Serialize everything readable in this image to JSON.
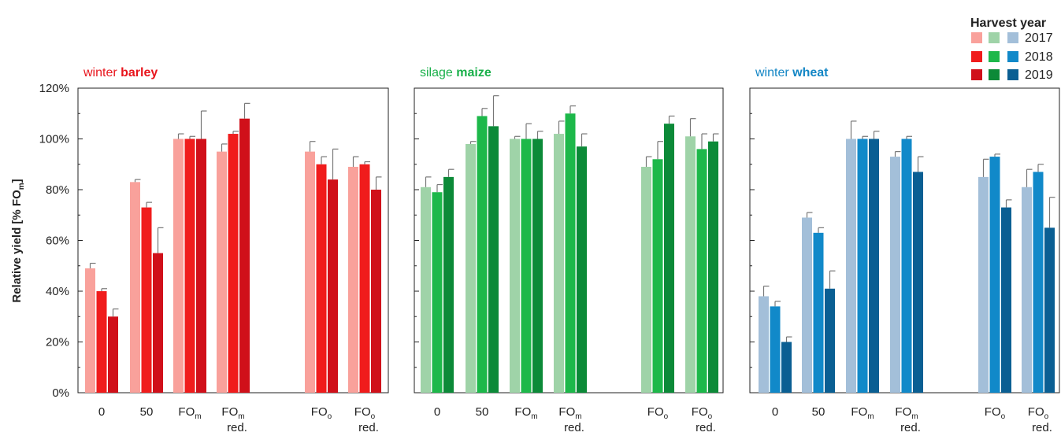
{
  "chart_data": {
    "type": "bar",
    "ylabel_main": "Relative yield [% FO",
    "ylabel_sub": "m",
    "ylabel_end": "]",
    "y_ticks": [
      "0%",
      "20%",
      "40%",
      "60%",
      "80%",
      "100%",
      "120%"
    ],
    "ylim": [
      0,
      120
    ],
    "legend": {
      "title": "Harvest year",
      "years": [
        "2017",
        "2018",
        "2019"
      ],
      "placement": "top-right"
    },
    "categories": [
      {
        "main": "0",
        "sub": "",
        "line2": ""
      },
      {
        "main": "50",
        "sub": "",
        "line2": ""
      },
      {
        "main": "FO",
        "sub": "m",
        "line2": ""
      },
      {
        "main": "FO",
        "sub": "m",
        "line2": "red."
      },
      {
        "main": "FO",
        "sub": "o",
        "line2": ""
      },
      {
        "main": "FO",
        "sub": "o",
        "line2": "red."
      }
    ],
    "panels": [
      {
        "title_prefix": "winter",
        "title_bold": "barley",
        "title_color": "#e8141c",
        "colors": [
          "#f9a19b",
          "#f01c1c",
          "#d0101a"
        ],
        "series": [
          {
            "name": "2017",
            "values": [
              49,
              83,
              100,
              95,
              95,
              89
            ],
            "errors": [
              2,
              1,
              2,
              3,
              4,
              4
            ]
          },
          {
            "name": "2018",
            "values": [
              40,
              73,
              100,
              102,
              90,
              90
            ],
            "errors": [
              1,
              2,
              1,
              1,
              3,
              1
            ]
          },
          {
            "name": "2019",
            "values": [
              30,
              55,
              100,
              108,
              84,
              80
            ],
            "errors": [
              3,
              10,
              11,
              6,
              12,
              5
            ]
          }
        ]
      },
      {
        "title_prefix": "silage",
        "title_bold": "maize",
        "title_color": "#19b04a",
        "colors": [
          "#9fd3a8",
          "#1db84a",
          "#0c8a38"
        ],
        "series": [
          {
            "name": "2017",
            "values": [
              81,
              98,
              100,
              102,
              89,
              101
            ],
            "errors": [
              4,
              1,
              1,
              5,
              4,
              7
            ]
          },
          {
            "name": "2018",
            "values": [
              79,
              109,
              100,
              110,
              92,
              96
            ],
            "errors": [
              3,
              3,
              6,
              3,
              7,
              6
            ]
          },
          {
            "name": "2019",
            "values": [
              85,
              105,
              100,
              97,
              106,
              99
            ],
            "errors": [
              3,
              12,
              3,
              5,
              3,
              3
            ]
          }
        ]
      },
      {
        "title_prefix": "winter",
        "title_bold": "wheat",
        "title_color": "#1386c5",
        "colors": [
          "#a3bfd9",
          "#1189c9",
          "#0a5f93"
        ],
        "series": [
          {
            "name": "2017",
            "values": [
              38,
              69,
              100,
              93,
              85,
              81
            ],
            "errors": [
              4,
              2,
              7,
              2,
              7,
              7
            ]
          },
          {
            "name": "2018",
            "values": [
              34,
              63,
              100,
              100,
              93,
              87
            ],
            "errors": [
              2,
              2,
              1,
              1,
              1,
              3
            ]
          },
          {
            "name": "2019",
            "values": [
              20,
              41,
              100,
              87,
              73,
              65
            ],
            "errors": [
              2,
              7,
              3,
              6,
              3,
              12
            ]
          }
        ]
      }
    ]
  }
}
